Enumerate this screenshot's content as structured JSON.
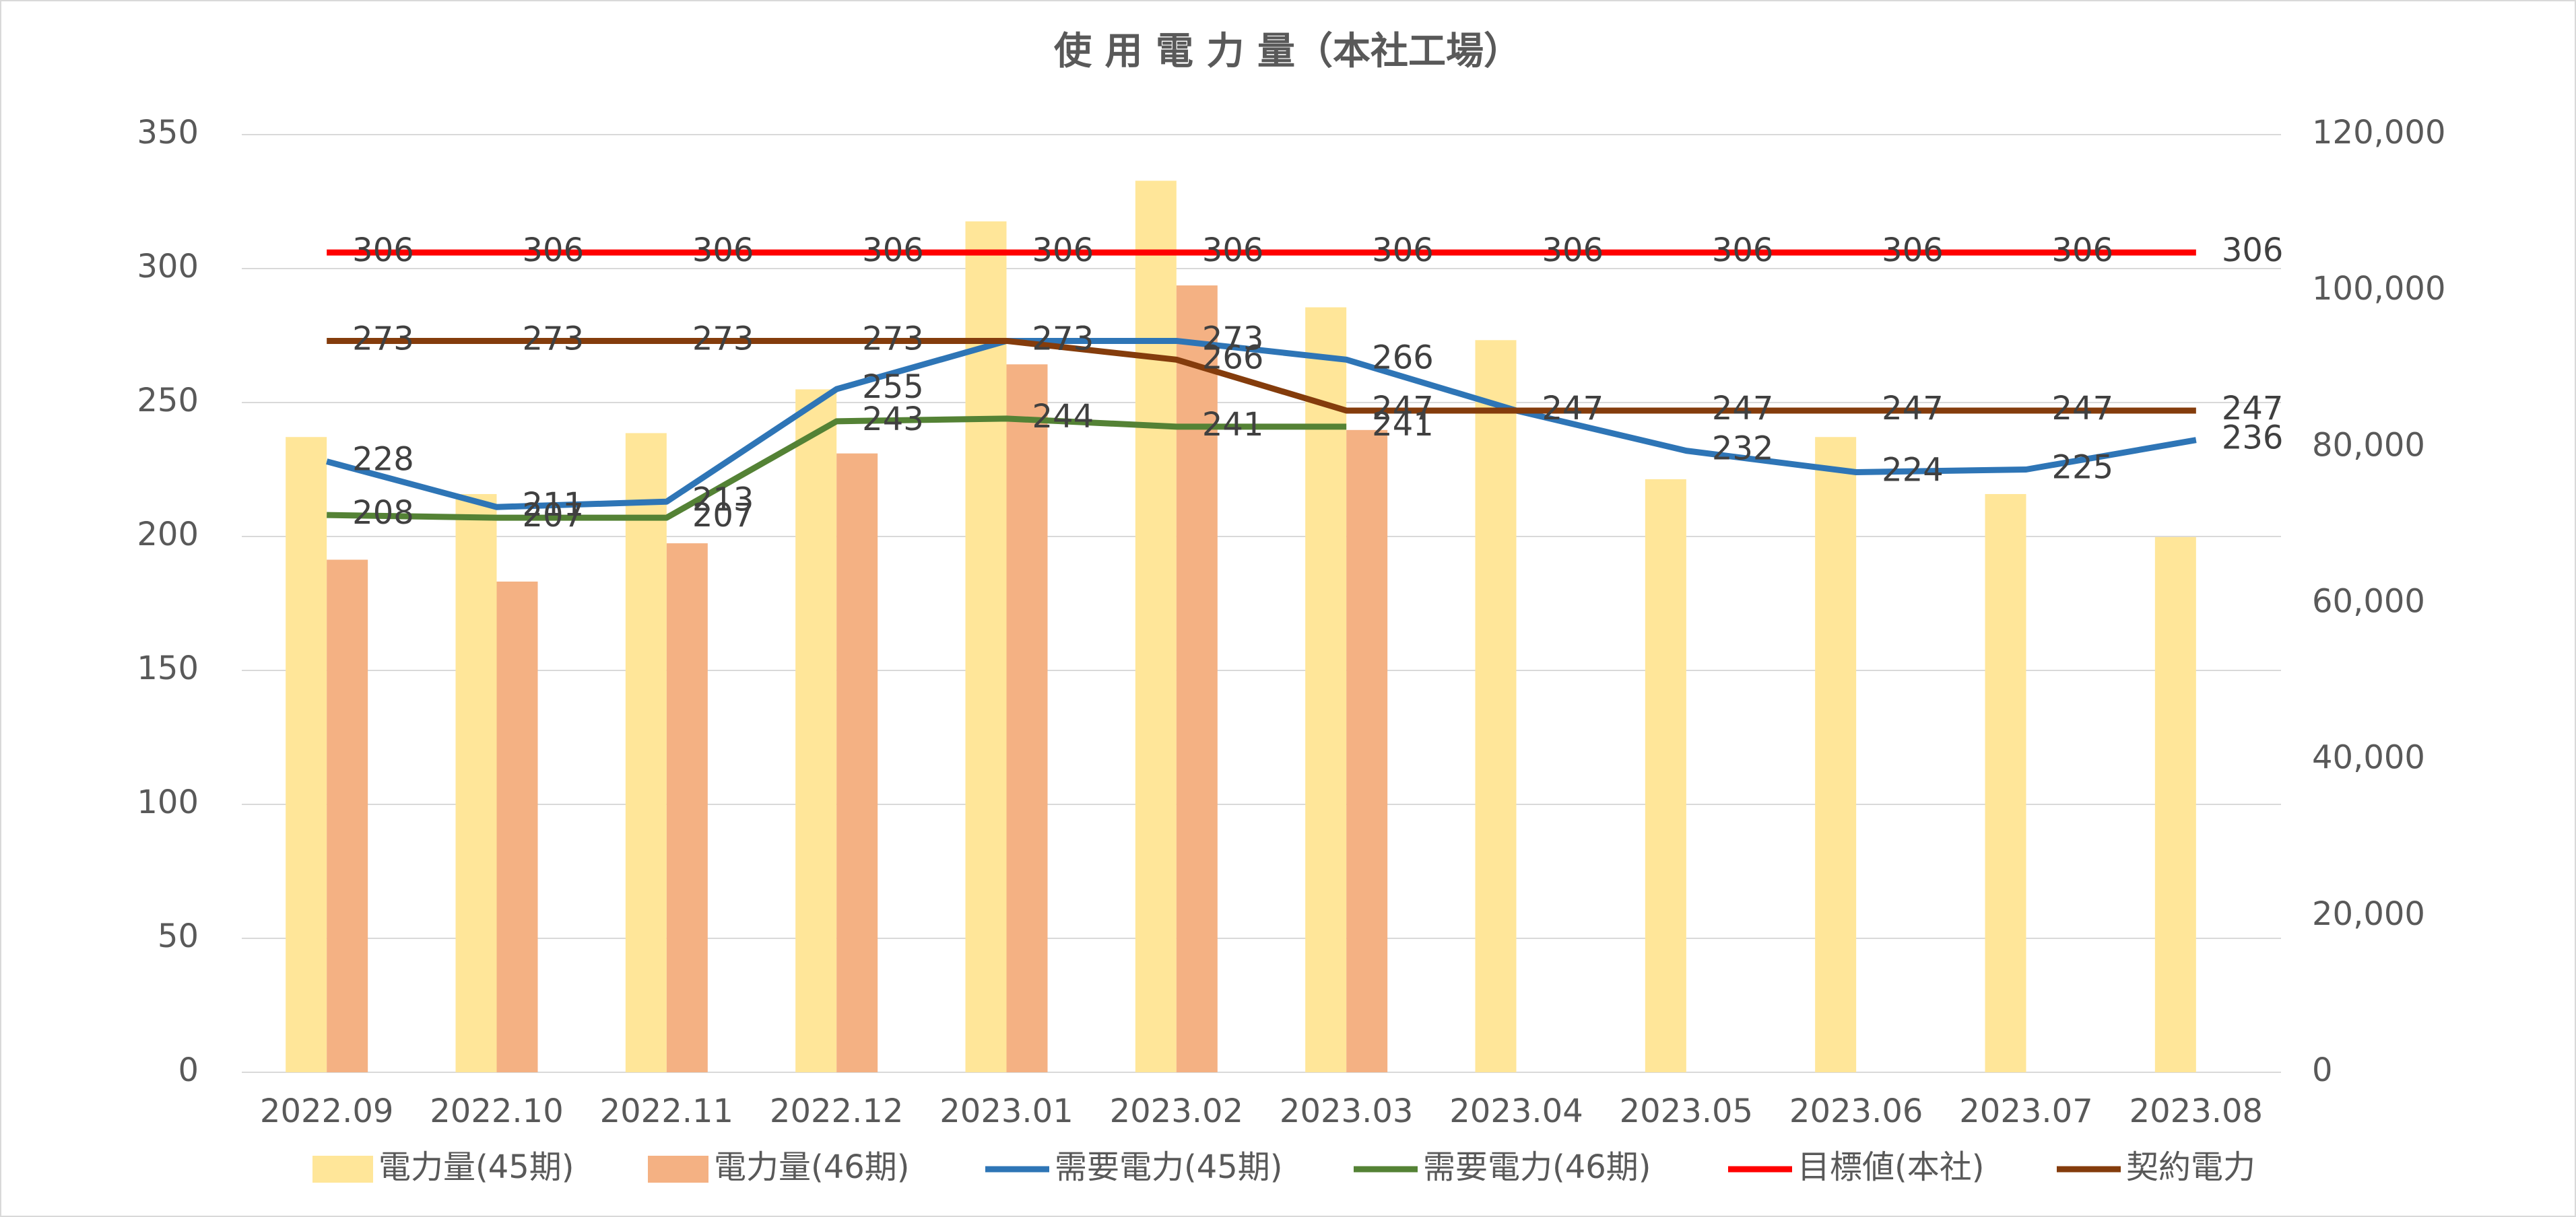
{
  "chart_data": {
    "type": "bar",
    "title": "使 用 電 力 量（本社工場）",
    "categories": [
      "2022.09",
      "2022.10",
      "2022.11",
      "2022.12",
      "2023.01",
      "2023.02",
      "2023.03",
      "2023.04",
      "2023.05",
      "2023.06",
      "2023.07",
      "2023.08"
    ],
    "series": [
      {
        "name": "電力量(45期)",
        "type": "bar",
        "axis": "y2",
        "color": "#ffe699",
        "values": [
          81300,
          74000,
          81800,
          87400,
          108900,
          114100,
          97900,
          93700,
          75900,
          81300,
          74000,
          68500
        ]
      },
      {
        "name": "電力量(46期)",
        "type": "bar",
        "axis": "y2",
        "color": "#f4b183",
        "values": [
          65600,
          62800,
          67700,
          79200,
          90600,
          100700,
          82200,
          null,
          null,
          null,
          null,
          null
        ]
      },
      {
        "name": "需要電力(45期)",
        "type": "line",
        "color": "#2e75b6",
        "values": [
          228,
          211,
          213,
          255,
          273,
          273,
          266,
          247,
          232,
          224,
          225,
          236
        ]
      },
      {
        "name": "需要電力(46期)",
        "type": "line",
        "color": "#548235",
        "values": [
          208,
          207,
          207,
          243,
          244,
          241,
          241,
          null,
          null,
          null,
          null,
          null
        ]
      },
      {
        "name": "目標値(本社)",
        "type": "line",
        "color": "#ff0000",
        "values": [
          306,
          306,
          306,
          306,
          306,
          306,
          306,
          306,
          306,
          306,
          306,
          306
        ]
      },
      {
        "name": "契約電力",
        "type": "line",
        "color": "#843c0c",
        "values": [
          273,
          273,
          273,
          273,
          273,
          266,
          247,
          247,
          247,
          247,
          247,
          247
        ]
      }
    ],
    "ylim": [
      0,
      350
    ],
    "yticks": [
      0,
      50,
      100,
      150,
      200,
      250,
      300,
      350
    ],
    "y2lim": [
      0,
      120000
    ],
    "y2ticks": [
      0,
      {
        "value": 20000,
        "label": "20,000"
      },
      {
        "value": 40000,
        "label": "40,000"
      },
      {
        "value": 60000,
        "label": "60,000"
      },
      {
        "value": 80000,
        "label": "80,000"
      },
      {
        "value": 100000,
        "label": "100,000"
      },
      {
        "value": 120000,
        "label": "120,000"
      }
    ],
    "grid": true,
    "legend": "bottom"
  }
}
